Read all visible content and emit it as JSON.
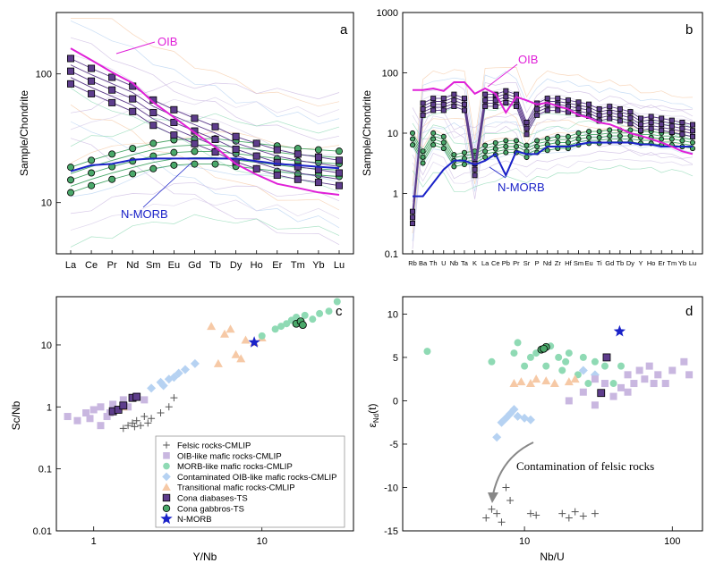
{
  "colors": {
    "oib": "#e020d8",
    "nmorb": "#1a22c8",
    "felsic": "#555555",
    "oib_like": "#c9b7e0",
    "morb_like": "#8fdab4",
    "contaminated": "#b6d2f2",
    "transitional": "#f6c9a6",
    "diabase": "#5e3d8c",
    "gabbro": "#4aa86a",
    "star": "#1a22c8"
  },
  "panels": {
    "a": {
      "label": "a",
      "ylabel": "Sample/Chondrite",
      "oib_label": "OIB",
      "nmorb_label": "N-MORB"
    },
    "b": {
      "label": "b",
      "ylabel": "Sample/Chondrite",
      "oib_label": "OIB",
      "nmorb_label": "N-MORB"
    },
    "c": {
      "label": "c",
      "xlabel": "Y/Nb",
      "ylabel": "Sc/Nb"
    },
    "d": {
      "label": "d",
      "xlabel": "Nb/U",
      "ylabel": "εNd(t)",
      "annotation": "Contamination of felsic rocks"
    }
  },
  "legend": [
    {
      "key": "felsic",
      "marker": "plus",
      "label": "Felsic rocks-CMLIP"
    },
    {
      "key": "oib_like",
      "marker": "square",
      "label": "OIB-like mafic rocks-CMLIP"
    },
    {
      "key": "morb_like",
      "marker": "circle",
      "label": "MORB-like mafic rocks-CMLIP"
    },
    {
      "key": "contaminated",
      "marker": "diamond",
      "label": "Contaminated OIB-like mafic rocks-CMLIP"
    },
    {
      "key": "transitional",
      "marker": "triangle",
      "label": "Transitional mafic rocks-CMLIP"
    },
    {
      "key": "diabase",
      "marker": "square-outlined",
      "label": "Cona diabases-TS"
    },
    {
      "key": "gabbro",
      "marker": "circle-outlined",
      "label": "Cona gabbros-TS"
    },
    {
      "key": "star",
      "marker": "star",
      "label": "N-MORB"
    }
  ],
  "chart_data": [
    {
      "id": "a",
      "type": "line",
      "scale": "log",
      "x": [
        "La",
        "Ce",
        "Pr",
        "Nd",
        "Sm",
        "Eu",
        "Gd",
        "Tb",
        "Dy",
        "Ho",
        "Er",
        "Tm",
        "Yb",
        "Lu"
      ],
      "ylim": [
        4,
        300
      ],
      "yticks": [
        10,
        100
      ],
      "series": [
        {
          "name": "OIB",
          "key": "oib",
          "values": [
            158,
            128,
            103,
            85,
            60,
            46,
            35,
            27,
            20,
            16.5,
            14,
            13,
            12,
            11.5
          ]
        },
        {
          "name": "N-MORB",
          "key": "nmorb",
          "values": [
            17.5,
            19.5,
            20,
            21.5,
            22,
            22,
            22,
            22,
            22,
            21,
            20,
            19.5,
            19,
            18.5
          ]
        },
        {
          "key": "diabase",
          "values": [
            105,
            88,
            75,
            64,
            50,
            42,
            36,
            31,
            26,
            23,
            20.5,
            19,
            18,
            17
          ]
        },
        {
          "key": "gabbro",
          "values": [
            15,
            17,
            19,
            21,
            23,
            24.5,
            25,
            25,
            24,
            23,
            22,
            21,
            20.5,
            20
          ]
        }
      ]
    },
    {
      "id": "b",
      "type": "line",
      "scale": "log",
      "x": [
        "Rb",
        "Ba",
        "Th",
        "U",
        "Nb",
        "Ta",
        "K",
        "La",
        "Ce",
        "Pb",
        "Pr",
        "Sr",
        "P",
        "Nd",
        "Zr",
        "Hf",
        "Sm",
        "Eu",
        "Ti",
        "Gd",
        "Tb",
        "Dy",
        "Y",
        "Ho",
        "Er",
        "Tm",
        "Yb",
        "Lu"
      ],
      "ylim": [
        0.1,
        1000
      ],
      "yticks": [
        0.1,
        1,
        10,
        100,
        1000
      ],
      "series": [
        {
          "name": "OIB",
          "key": "oib",
          "values": [
            52,
            52,
            55,
            50,
            70,
            70,
            45,
            55,
            45,
            22,
            40,
            35,
            30,
            32,
            28,
            25,
            20,
            18,
            15,
            14,
            12,
            10,
            9,
            8,
            7,
            6,
            5,
            4.5
          ]
        },
        {
          "name": "N-MORB",
          "key": "nmorb",
          "values": [
            0.9,
            0.9,
            1.5,
            2.5,
            3.5,
            3.5,
            3,
            3.5,
            4.5,
            2,
            5,
            4.5,
            4.5,
            6,
            6,
            6,
            6.5,
            7,
            7,
            7,
            7,
            7,
            6.5,
            6.5,
            6,
            6,
            6,
            6
          ]
        },
        {
          "key": "diabase",
          "values": [
            0.4,
            25,
            30,
            30,
            35,
            30,
            2.5,
            35,
            35,
            40,
            35,
            12,
            25,
            30,
            30,
            28,
            26,
            24,
            20,
            22,
            20,
            18,
            14,
            15,
            14,
            13,
            12,
            11
          ]
        },
        {
          "key": "gabbro",
          "values": [
            8,
            4,
            8,
            7,
            3.5,
            3.8,
            4,
            5,
            5.5,
            6,
            6,
            5,
            6,
            6.5,
            7,
            7,
            8,
            8.5,
            8.5,
            9,
            9,
            9,
            8.5,
            8.5,
            8,
            8,
            7.5,
            7
          ]
        }
      ]
    },
    {
      "id": "c",
      "type": "scatter",
      "scale": "loglog",
      "xlabel": "Y/Nb",
      "ylabel": "Sc/Nb",
      "xlim": [
        0.6,
        35
      ],
      "ylim": [
        0.01,
        60
      ],
      "xticks": [
        1,
        10
      ],
      "yticks": [
        0.01,
        0.1,
        1,
        10
      ],
      "series": [
        {
          "key": "felsic",
          "points": [
            [
              1.6,
              0.5
            ],
            [
              1.7,
              0.55
            ],
            [
              1.8,
              0.6
            ],
            [
              1.9,
              0.5
            ],
            [
              2,
              0.7
            ],
            [
              2.2,
              0.65
            ],
            [
              2.5,
              0.8
            ],
            [
              2.8,
              1
            ],
            [
              3,
              1.4
            ],
            [
              1.5,
              0.45
            ],
            [
              2.1,
              0.55
            ],
            [
              1.75,
              0.48
            ]
          ]
        },
        {
          "key": "oib_like",
          "points": [
            [
              0.7,
              0.7
            ],
            [
              0.8,
              0.6
            ],
            [
              0.9,
              0.8
            ],
            [
              1,
              0.9
            ],
            [
              1.1,
              1
            ],
            [
              1.2,
              0.7
            ],
            [
              1.3,
              1.1
            ],
            [
              1.4,
              0.9
            ],
            [
              1.5,
              1.3
            ],
            [
              1.6,
              1
            ],
            [
              1.8,
              1.5
            ],
            [
              2,
              1.3
            ],
            [
              1.1,
              0.5
            ],
            [
              0.95,
              0.65
            ],
            [
              1.25,
              0.8
            ]
          ]
        },
        {
          "key": "contaminated",
          "points": [
            [
              2.2,
              2
            ],
            [
              2.5,
              2.5
            ],
            [
              2.8,
              2.8
            ],
            [
              3,
              3
            ],
            [
              3.5,
              4
            ],
            [
              4,
              5
            ],
            [
              2.6,
              2.2
            ],
            [
              3.2,
              3.5
            ]
          ]
        },
        {
          "key": "transitional",
          "points": [
            [
              1.5,
              1
            ],
            [
              5,
              20
            ],
            [
              6,
              15
            ],
            [
              7,
              7
            ],
            [
              8,
              12
            ],
            [
              9,
              11
            ],
            [
              5.5,
              5
            ],
            [
              6.5,
              18
            ],
            [
              10,
              13
            ],
            [
              7.5,
              6
            ]
          ]
        },
        {
          "key": "morb_like",
          "points": [
            [
              10,
              14
            ],
            [
              12,
              18
            ],
            [
              14,
              22
            ],
            [
              15,
              25
            ],
            [
              16,
              28
            ],
            [
              18,
              30
            ],
            [
              20,
              26
            ],
            [
              22,
              32
            ],
            [
              25,
              35
            ],
            [
              28,
              50
            ],
            [
              13,
              20
            ],
            [
              17,
              24
            ]
          ]
        },
        {
          "key": "diabase",
          "points": [
            [
              1.3,
              0.85
            ],
            [
              1.4,
              0.9
            ],
            [
              1.5,
              1.05
            ],
            [
              1.7,
              1.4
            ],
            [
              1.8,
              1.45
            ]
          ]
        },
        {
          "key": "gabbro",
          "points": [
            [
              16,
              22
            ],
            [
              17,
              24
            ],
            [
              17.5,
              21
            ]
          ]
        },
        {
          "key": "star",
          "points": [
            [
              9,
              11
            ]
          ]
        }
      ]
    },
    {
      "id": "d",
      "type": "scatter",
      "scale": "logx",
      "xlabel": "Nb/U",
      "ylabel": "εNd(t)",
      "xlim": [
        1.5,
        160
      ],
      "ylim": [
        -15,
        12
      ],
      "xticks": [
        10,
        100
      ],
      "yticks": [
        -15,
        -10,
        -5,
        0,
        5,
        10
      ],
      "series": [
        {
          "key": "felsic",
          "points": [
            [
              5.5,
              -13.5
            ],
            [
              6,
              -12.5
            ],
            [
              6.5,
              -13
            ],
            [
              7,
              -14
            ],
            [
              7.5,
              -10
            ],
            [
              8,
              -11.5
            ],
            [
              11,
              -13
            ],
            [
              12,
              -13.2
            ],
            [
              18,
              -13
            ],
            [
              20,
              -13.5
            ],
            [
              22,
              -12.8
            ],
            [
              25,
              -13.3
            ],
            [
              30,
              -13
            ]
          ]
        },
        {
          "key": "morb_like",
          "points": [
            [
              2.2,
              5.7
            ],
            [
              6,
              4.5
            ],
            [
              8.5,
              5.5
            ],
            [
              9,
              6.7
            ],
            [
              10,
              4
            ],
            [
              11,
              5
            ],
            [
              12,
              5.5
            ],
            [
              14,
              4
            ],
            [
              15,
              6.3
            ],
            [
              17,
              5
            ],
            [
              18,
              3.5
            ],
            [
              19,
              4.5
            ],
            [
              20,
              5.5
            ],
            [
              23,
              3
            ],
            [
              25,
              5
            ],
            [
              27,
              2
            ],
            [
              30,
              4.5
            ],
            [
              35,
              4
            ],
            [
              40,
              2
            ],
            [
              45,
              4
            ]
          ]
        },
        {
          "key": "transitional",
          "points": [
            [
              8.5,
              2
            ],
            [
              9.5,
              2.2
            ],
            [
              11,
              2
            ],
            [
              12,
              2.5
            ],
            [
              14,
              2.3
            ],
            [
              16,
              2
            ],
            [
              20,
              2.2
            ],
            [
              22,
              2.5
            ]
          ]
        },
        {
          "key": "contaminated",
          "points": [
            [
              6.5,
              -4.2
            ],
            [
              7,
              -2.5
            ],
            [
              7.5,
              -2
            ],
            [
              8,
              -1.5
            ],
            [
              8.5,
              -1
            ],
            [
              9,
              -1.8
            ],
            [
              10,
              -2
            ],
            [
              11,
              -2.2
            ],
            [
              25,
              3.5
            ],
            [
              30,
              3
            ]
          ]
        },
        {
          "key": "oib_like",
          "points": [
            [
              20,
              0
            ],
            [
              25,
              1
            ],
            [
              30,
              2.5
            ],
            [
              35,
              2
            ],
            [
              40,
              0.5
            ],
            [
              45,
              1.5
            ],
            [
              50,
              3
            ],
            [
              55,
              2
            ],
            [
              60,
              3.5
            ],
            [
              65,
              2.5
            ],
            [
              70,
              4
            ],
            [
              80,
              3
            ],
            [
              90,
              2
            ],
            [
              100,
              3.5
            ],
            [
              120,
              4.5
            ],
            [
              130,
              3
            ],
            [
              30,
              -0.5
            ],
            [
              50,
              1
            ],
            [
              75,
              2
            ]
          ]
        },
        {
          "key": "diabase",
          "points": [
            [
              33,
              0.9
            ],
            [
              36,
              5
            ]
          ]
        },
        {
          "key": "gabbro",
          "points": [
            [
              13,
              5.9
            ],
            [
              14,
              6.2
            ],
            [
              13.5,
              6
            ]
          ]
        },
        {
          "key": "star",
          "points": [
            [
              44,
              8
            ]
          ]
        }
      ]
    }
  ]
}
